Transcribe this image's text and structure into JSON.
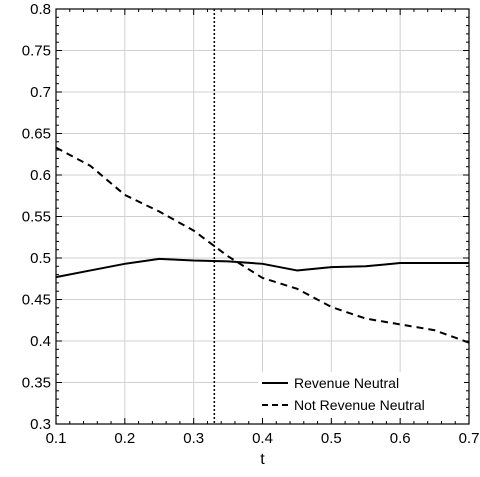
{
  "chart_data": {
    "type": "line",
    "title": "",
    "xlabel": "t",
    "ylabel": "",
    "xlim": [
      0.1,
      0.7
    ],
    "ylim": [
      0.3,
      0.8
    ],
    "xticks": [
      0.1,
      0.2,
      0.3,
      0.4,
      0.5,
      0.6,
      0.7
    ],
    "xtick_labels": [
      "0.1",
      "0.2",
      "0.3",
      "0.4",
      "0.5",
      "0.6",
      "0.7"
    ],
    "yticks": [
      0.3,
      0.35,
      0.4,
      0.45,
      0.5,
      0.55,
      0.6,
      0.65,
      0.7,
      0.75,
      0.8
    ],
    "ytick_labels": [
      "0.3",
      "0.35",
      "0.4",
      "0.45",
      "0.5",
      "0.55",
      "0.6",
      "0.65",
      "0.7",
      "0.75",
      "0.8"
    ],
    "grid": true,
    "legend_position": "bottom-right",
    "vertical_reference_line": {
      "x": 0.33,
      "style": "dotted"
    },
    "series": [
      {
        "name": "Revenue Neutral",
        "style": "solid",
        "color": "#000000",
        "x": [
          0.1,
          0.15,
          0.2,
          0.25,
          0.3,
          0.35,
          0.4,
          0.45,
          0.5,
          0.55,
          0.6,
          0.65,
          0.7
        ],
        "y": [
          0.477,
          0.485,
          0.493,
          0.499,
          0.497,
          0.496,
          0.493,
          0.485,
          0.489,
          0.49,
          0.494,
          0.494,
          0.494
        ]
      },
      {
        "name": "Not Revenue Neutral",
        "style": "dashed",
        "color": "#000000",
        "x": [
          0.1,
          0.15,
          0.2,
          0.25,
          0.3,
          0.35,
          0.4,
          0.45,
          0.5,
          0.55,
          0.6,
          0.65,
          0.7
        ],
        "y": [
          0.633,
          0.611,
          0.576,
          0.556,
          0.533,
          0.502,
          0.476,
          0.463,
          0.441,
          0.427,
          0.42,
          0.413,
          0.398
        ]
      }
    ]
  }
}
